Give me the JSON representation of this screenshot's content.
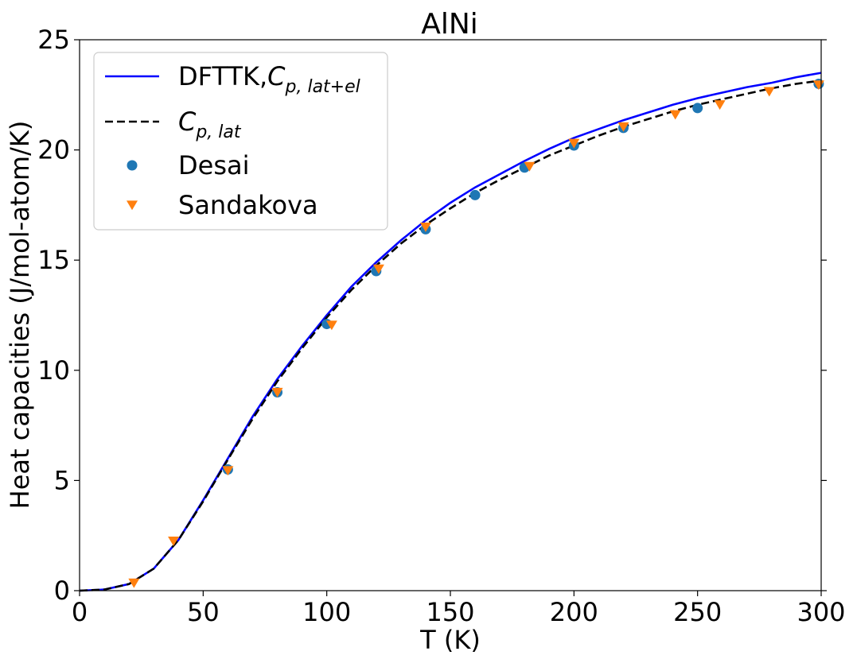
{
  "chart_data": {
    "type": "line",
    "title": "AlNi",
    "xlabel": "T (K)",
    "ylabel": "Heat capacities (J/mol-atom/K)",
    "xlim": [
      0,
      300
    ],
    "ylim": [
      0,
      25
    ],
    "x_ticks": [
      0,
      50,
      100,
      150,
      200,
      250,
      300
    ],
    "y_ticks": [
      0,
      5,
      10,
      15,
      20,
      25
    ],
    "grid": false,
    "legend_position": "top-left",
    "series": [
      {
        "name": "DFTTK,C",
        "name_sub": "p, lat+el",
        "kind": "line",
        "style": "solid",
        "color": "#0000ff",
        "x": [
          0,
          10,
          20,
          30,
          40,
          50,
          60,
          70,
          80,
          90,
          100,
          110,
          120,
          130,
          140,
          150,
          160,
          170,
          180,
          190,
          200,
          210,
          220,
          230,
          240,
          250,
          260,
          270,
          280,
          290,
          300
        ],
        "y": [
          0,
          0.05,
          0.3,
          1.0,
          2.3,
          4.1,
          6.0,
          7.9,
          9.6,
          11.1,
          12.5,
          13.8,
          14.9,
          15.9,
          16.8,
          17.6,
          18.3,
          18.9,
          19.5,
          20.05,
          20.55,
          20.95,
          21.35,
          21.7,
          22.05,
          22.35,
          22.6,
          22.85,
          23.05,
          23.3,
          23.5
        ]
      },
      {
        "name": "C",
        "name_sub": "p, lat",
        "kind": "line",
        "style": "dashed",
        "color": "#000000",
        "x": [
          0,
          10,
          20,
          30,
          40,
          50,
          60,
          70,
          80,
          90,
          100,
          110,
          120,
          130,
          140,
          150,
          160,
          170,
          180,
          190,
          200,
          210,
          220,
          230,
          240,
          250,
          260,
          270,
          280,
          290,
          300
        ],
        "y": [
          0,
          0.05,
          0.3,
          1.0,
          2.3,
          4.05,
          5.95,
          7.8,
          9.5,
          11.0,
          12.4,
          13.65,
          14.75,
          15.75,
          16.6,
          17.35,
          18.05,
          18.65,
          19.2,
          19.75,
          20.2,
          20.65,
          21.05,
          21.4,
          21.75,
          22.05,
          22.3,
          22.55,
          22.8,
          23.0,
          23.15
        ]
      },
      {
        "name": "Desai",
        "kind": "scatter",
        "marker": "circle",
        "color": "#1f77b4",
        "x": [
          60,
          80,
          100,
          120,
          140,
          160,
          180,
          200,
          220,
          250,
          299
        ],
        "y": [
          5.5,
          9.0,
          12.1,
          14.5,
          16.4,
          17.95,
          19.2,
          20.2,
          21.0,
          21.9,
          23.0
        ]
      },
      {
        "name": "Sandakova",
        "kind": "scatter",
        "marker": "triangle-down",
        "color": "#ff7f0e",
        "x": [
          22,
          38,
          60,
          80,
          102,
          121,
          140,
          182,
          200,
          220,
          241,
          259,
          279,
          299
        ],
        "y": [
          0.35,
          2.25,
          5.45,
          9.0,
          12.05,
          14.6,
          16.5,
          19.25,
          20.3,
          21.05,
          21.6,
          22.05,
          22.65,
          22.95
        ]
      }
    ]
  }
}
